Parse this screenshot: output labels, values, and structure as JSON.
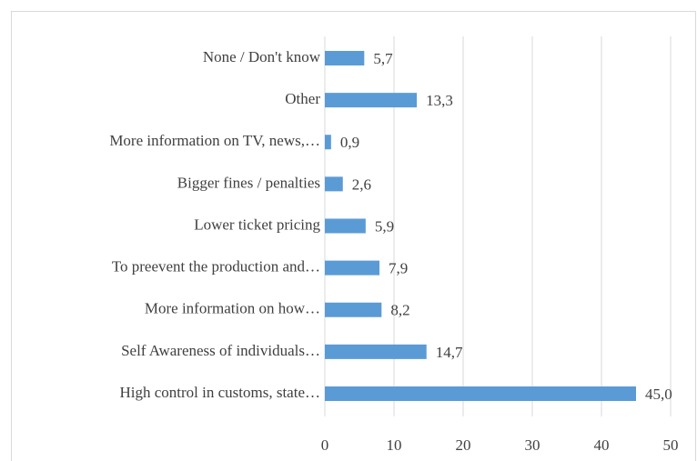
{
  "chart_data": {
    "type": "barh",
    "categories": [
      "None / Don't know",
      "Other",
      "More information on TV, news,…",
      "Bigger fines / penalties",
      "Lower ticket pricing",
      "To preevent the production and…",
      "More information on how…",
      "Self Awareness of individuals…",
      "High control in customs, state…"
    ],
    "values": [
      5.7,
      13.3,
      0.9,
      2.6,
      5.9,
      7.9,
      8.2,
      14.7,
      45.0
    ],
    "value_labels": [
      "5,7",
      "13,3",
      "0,9",
      "2,6",
      "5,9",
      "7,9",
      "8,2",
      "14,7",
      "45,0"
    ],
    "color": "#5b9bd5",
    "xlim": [
      0,
      50
    ],
    "xticks": [
      0,
      10,
      20,
      30,
      40,
      50
    ],
    "grid": true
  }
}
